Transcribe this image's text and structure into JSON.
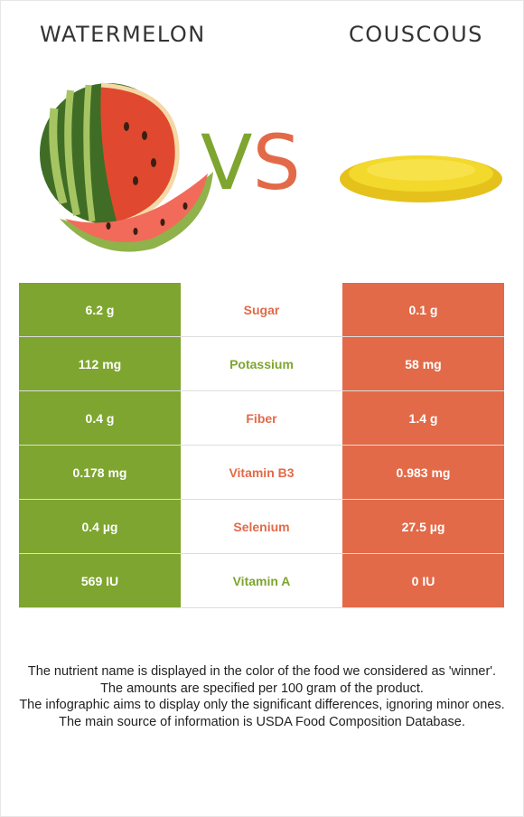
{
  "foods": {
    "left": {
      "name": "WATERMELON",
      "color": "#7ea52f"
    },
    "right": {
      "name": "COUSCOUS",
      "color": "#e26a48"
    }
  },
  "vs": {
    "v": "V",
    "s": "S"
  },
  "nutrients": [
    {
      "name": "Sugar",
      "left": "6.2 g",
      "right": "0.1 g",
      "winner": "right"
    },
    {
      "name": "Potassium",
      "left": "112 mg",
      "right": "58 mg",
      "winner": "left"
    },
    {
      "name": "Fiber",
      "left": "0.4 g",
      "right": "1.4 g",
      "winner": "right"
    },
    {
      "name": "Vitamin B3",
      "left": "0.178 mg",
      "right": "0.983 mg",
      "winner": "right"
    },
    {
      "name": "Selenium",
      "left": "0.4 µg",
      "right": "27.5 µg",
      "winner": "right"
    },
    {
      "name": "Vitamin A",
      "left": "569 IU",
      "right": "0 IU",
      "winner": "left"
    }
  ],
  "footer": {
    "line1": "The nutrient name is displayed in the color of the food we considered as 'winner'.",
    "line2": "The amounts are specified per 100 gram of the product.",
    "line3": "The infographic aims to display only the significant differences, ignoring minor ones.",
    "line4": "The main source of information is USDA Food Composition Database."
  }
}
